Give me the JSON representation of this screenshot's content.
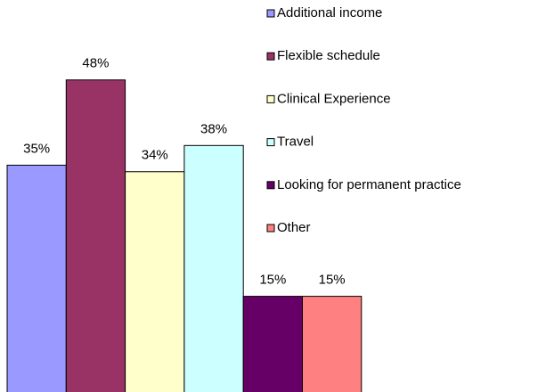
{
  "chart_data": {
    "type": "bar",
    "series": [
      {
        "name": "Additional income",
        "color": "#9999ff",
        "values": [
          35
        ],
        "value_labels": [
          "35%"
        ]
      },
      {
        "name": "Flexible schedule",
        "color": "#993366",
        "values": [
          48
        ],
        "value_labels": [
          "48%"
        ]
      },
      {
        "name": "Clinical Experience",
        "color": "#ffffcc",
        "values": [
          34
        ],
        "value_labels": [
          "34%"
        ]
      },
      {
        "name": "Travel",
        "color": "#ccffff",
        "values": [
          38
        ],
        "value_labels": [
          "38%"
        ]
      },
      {
        "name": "Looking for permanent practice",
        "color": "#660066",
        "values": [
          15
        ],
        "value_labels": [
          "15%"
        ]
      },
      {
        "name": "Other",
        "color": "#ff8080",
        "values": [
          15
        ],
        "value_labels": [
          "15%"
        ]
      }
    ]
  }
}
